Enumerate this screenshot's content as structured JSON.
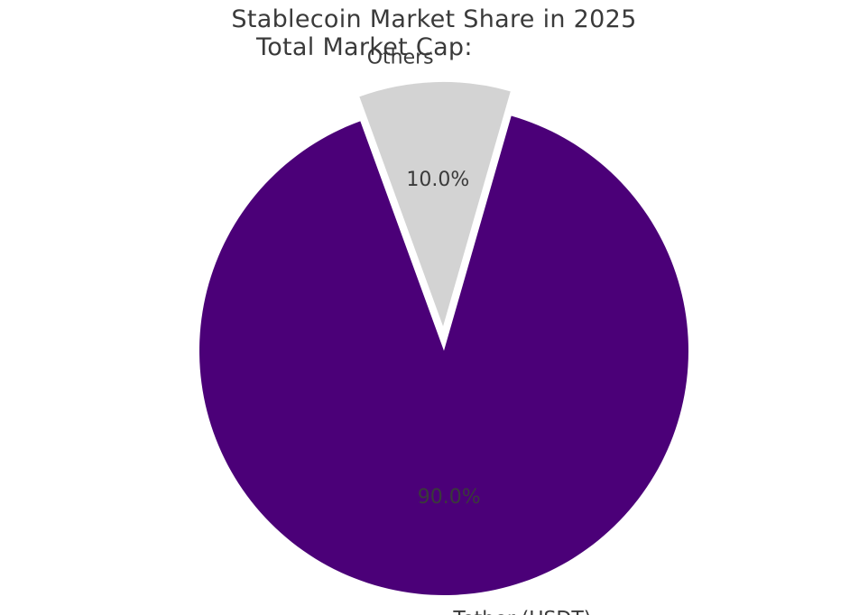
{
  "chart_data": {
    "type": "pie",
    "title": "Stablecoin Market Share in 2025",
    "subtitle": "Total Market Cap:",
    "slices": [
      {
        "label": "Tether (USDT)",
        "value": 90.0,
        "pct_label": "90.0%",
        "color": "#4b0078",
        "explode": false
      },
      {
        "label": "Others",
        "value": 10.0,
        "pct_label": "10.0%",
        "color": "#d3d3d3",
        "explode": true
      }
    ],
    "legend": "none"
  }
}
